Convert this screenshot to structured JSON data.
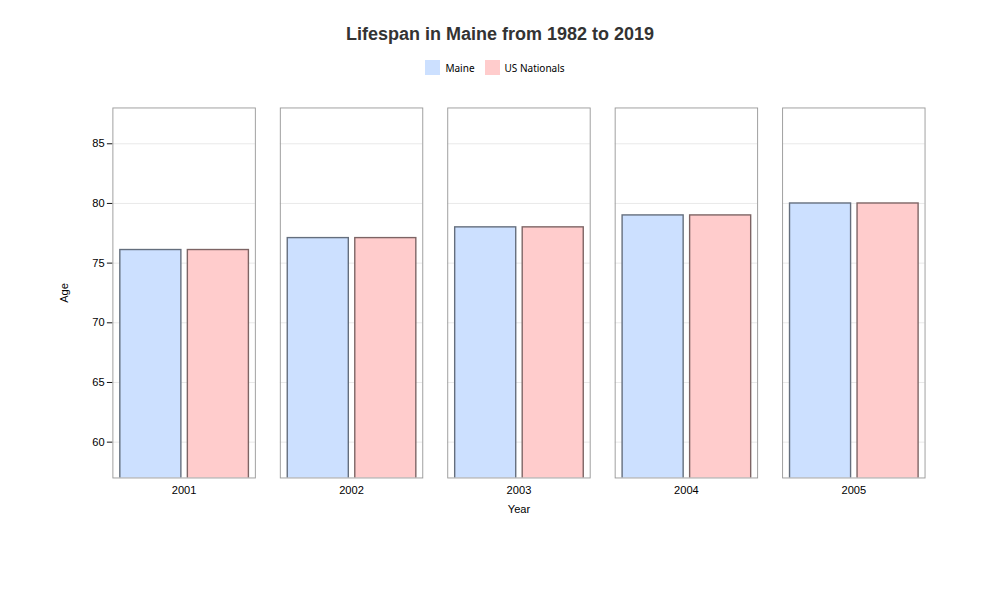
{
  "chart_data": {
    "type": "bar",
    "title": "Lifespan in Maine from 1982 to 2019",
    "x_label": "Year",
    "y_label": "Age",
    "categories": [
      "2001",
      "2002",
      "2003",
      "2004",
      "2005"
    ],
    "series": [
      {
        "name": "Maine",
        "color": "#cce0ff",
        "values": [
          76.1,
          77.1,
          78.0,
          79.0,
          80.0
        ]
      },
      {
        "name": "US Nationals",
        "color": "#ffcccc",
        "values": [
          76.1,
          77.1,
          78.0,
          79.0,
          80.0
        ]
      }
    ],
    "ylim": [
      57,
      88
    ],
    "yticks": [
      60,
      65,
      70,
      75,
      80,
      85
    ],
    "grid": true,
    "legend": "top"
  }
}
